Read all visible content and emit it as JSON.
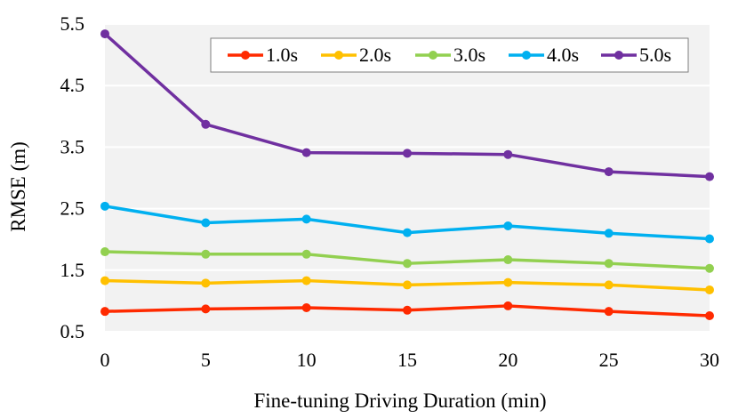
{
  "chart_data": {
    "type": "line",
    "title": "",
    "xlabel": "Fine-tuning Driving Duration (min)",
    "ylabel": "RMSE (m)",
    "x": [
      0,
      5,
      10,
      15,
      20,
      25,
      30
    ],
    "x_tick_labels": [
      "0",
      "5",
      "10",
      "15",
      "20",
      "25",
      "30"
    ],
    "y_tick_labels": [
      "0.5",
      "1.5",
      "2.5",
      "3.5",
      "4.5",
      "5.5"
    ],
    "y_ticks": [
      0.5,
      1.5,
      2.5,
      3.5,
      4.5,
      5.5
    ],
    "xlim": [
      0,
      30
    ],
    "ylim": [
      0.5,
      5.5
    ],
    "grid": true,
    "legend_position": "top-right",
    "series": [
      {
        "name": "1.0s",
        "color": "#ff2a00",
        "values": [
          0.83,
          0.87,
          0.89,
          0.85,
          0.92,
          0.83,
          0.76
        ]
      },
      {
        "name": "2.0s",
        "color": "#ffc000",
        "values": [
          1.33,
          1.29,
          1.33,
          1.26,
          1.3,
          1.26,
          1.18
        ]
      },
      {
        "name": "3.0s",
        "color": "#92d050",
        "values": [
          1.8,
          1.76,
          1.76,
          1.61,
          1.67,
          1.61,
          1.53
        ]
      },
      {
        "name": "4.0s",
        "color": "#00b0f0",
        "values": [
          2.54,
          2.27,
          2.33,
          2.11,
          2.22,
          2.1,
          2.01
        ]
      },
      {
        "name": "5.0s",
        "color": "#7030a0",
        "values": [
          5.34,
          3.87,
          3.41,
          3.4,
          3.38,
          3.1,
          3.02
        ]
      }
    ]
  }
}
